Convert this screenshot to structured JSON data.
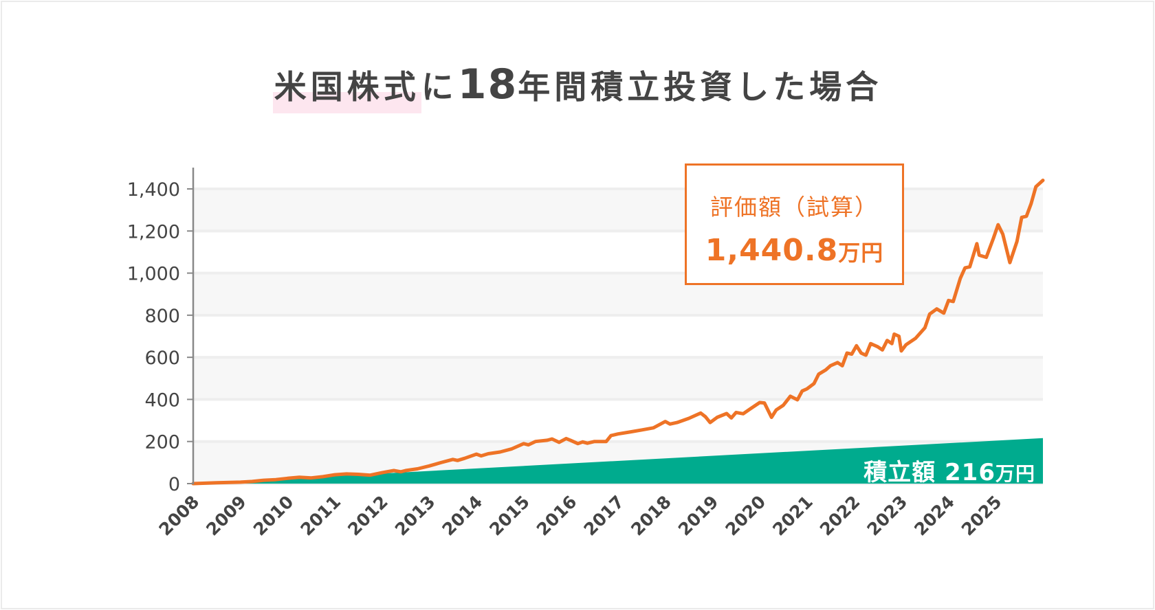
{
  "title": {
    "highlight": "米国株式",
    "part1": "に",
    "number": "18",
    "part2": "年間積立投資した場合"
  },
  "callout": {
    "label": "評価額（試算）",
    "value": "1,440.8",
    "unit": "万円"
  },
  "accumulated_label": {
    "label": "積立額",
    "value": "216",
    "unit": "万円"
  },
  "colors": {
    "valuation": "#ee7326",
    "accumulated": "#00ab8e",
    "highlight": "#fde6ef",
    "text": "#444444"
  },
  "chart_data": {
    "type": "line",
    "xlim": [
      2008,
      2026
    ],
    "ylim": [
      0,
      1400
    ],
    "x_ticks": [
      "2008",
      "2009",
      "2010",
      "2011",
      "2012",
      "2013",
      "2014",
      "2015",
      "2016",
      "2017",
      "2018",
      "2019",
      "2020",
      "2021",
      "2022",
      "2023",
      "2024",
      "2025"
    ],
    "y_ticks": [
      "0",
      "200",
      "400",
      "600",
      "800",
      "1,000",
      "1,200",
      "1,400"
    ],
    "y_tick_values": [
      0,
      200,
      400,
      600,
      800,
      1000,
      1200,
      1400
    ],
    "grid": true,
    "series": [
      {
        "name": "評価額（試算）",
        "type": "line",
        "color": "#ee7326",
        "points": [
          [
            2008,
            0
          ],
          [
            2008.5,
            4
          ],
          [
            2009,
            7
          ],
          [
            2009.25,
            10
          ],
          [
            2009.5,
            16
          ],
          [
            2009.75,
            19
          ],
          [
            2010,
            25
          ],
          [
            2010.25,
            30
          ],
          [
            2010.5,
            27
          ],
          [
            2010.75,
            33
          ],
          [
            2011,
            42
          ],
          [
            2011.25,
            46
          ],
          [
            2011.5,
            44
          ],
          [
            2011.75,
            40
          ],
          [
            2012,
            52
          ],
          [
            2012.25,
            62
          ],
          [
            2012.4,
            56
          ],
          [
            2012.5,
            62
          ],
          [
            2012.75,
            70
          ],
          [
            2013,
            84
          ],
          [
            2013.25,
            100
          ],
          [
            2013.5,
            115
          ],
          [
            2013.6,
            110
          ],
          [
            2013.75,
            120
          ],
          [
            2014,
            140
          ],
          [
            2014.1,
            132
          ],
          [
            2014.25,
            142
          ],
          [
            2014.5,
            150
          ],
          [
            2014.75,
            165
          ],
          [
            2015,
            190
          ],
          [
            2015.1,
            184
          ],
          [
            2015.25,
            200
          ],
          [
            2015.5,
            206
          ],
          [
            2015.6,
            212
          ],
          [
            2015.75,
            196
          ],
          [
            2015.9,
            214
          ],
          [
            2016,
            205
          ],
          [
            2016.15,
            190
          ],
          [
            2016.25,
            198
          ],
          [
            2016.35,
            192
          ],
          [
            2016.5,
            200
          ],
          [
            2016.75,
            200
          ],
          [
            2016.85,
            228
          ],
          [
            2017,
            236
          ],
          [
            2017.25,
            245
          ],
          [
            2017.5,
            255
          ],
          [
            2017.75,
            265
          ],
          [
            2018,
            295
          ],
          [
            2018.1,
            283
          ],
          [
            2018.25,
            290
          ],
          [
            2018.5,
            310
          ],
          [
            2018.75,
            335
          ],
          [
            2018.85,
            318
          ],
          [
            2018.95,
            290
          ],
          [
            2019.1,
            315
          ],
          [
            2019.3,
            333
          ],
          [
            2019.4,
            312
          ],
          [
            2019.5,
            338
          ],
          [
            2019.65,
            332
          ],
          [
            2019.8,
            355
          ],
          [
            2020,
            385
          ],
          [
            2020.1,
            383
          ],
          [
            2020.25,
            315
          ],
          [
            2020.35,
            350
          ],
          [
            2020.5,
            372
          ],
          [
            2020.65,
            415
          ],
          [
            2020.8,
            398
          ],
          [
            2020.9,
            440
          ],
          [
            2021,
            450
          ],
          [
            2021.15,
            475
          ],
          [
            2021.25,
            520
          ],
          [
            2021.4,
            540
          ],
          [
            2021.5,
            560
          ],
          [
            2021.65,
            575
          ],
          [
            2021.75,
            560
          ],
          [
            2021.85,
            620
          ],
          [
            2021.95,
            615
          ],
          [
            2022.05,
            655
          ],
          [
            2022.15,
            620
          ],
          [
            2022.25,
            610
          ],
          [
            2022.35,
            665
          ],
          [
            2022.5,
            650
          ],
          [
            2022.6,
            635
          ],
          [
            2022.7,
            680
          ],
          [
            2022.8,
            665
          ],
          [
            2022.85,
            710
          ],
          [
            2022.95,
            700
          ],
          [
            2023,
            630
          ],
          [
            2023.1,
            660
          ],
          [
            2023.3,
            690
          ],
          [
            2023.5,
            740
          ],
          [
            2023.6,
            805
          ],
          [
            2023.75,
            830
          ],
          [
            2023.9,
            810
          ],
          [
            2024,
            870
          ],
          [
            2024.1,
            865
          ],
          [
            2024.25,
            975
          ],
          [
            2024.35,
            1025
          ],
          [
            2024.45,
            1030
          ],
          [
            2024.6,
            1140
          ],
          [
            2024.65,
            1085
          ],
          [
            2024.8,
            1075
          ],
          [
            2024.95,
            1165
          ],
          [
            2025.05,
            1230
          ],
          [
            2025.15,
            1185
          ],
          [
            2025.3,
            1050
          ],
          [
            2025.45,
            1150
          ],
          [
            2025.55,
            1265
          ],
          [
            2025.65,
            1270
          ],
          [
            2025.75,
            1330
          ],
          [
            2025.85,
            1410
          ],
          [
            2026,
            1440.8
          ]
        ]
      },
      {
        "name": "積立額",
        "type": "area",
        "color": "#00ab8e",
        "points": [
          [
            2008,
            0
          ],
          [
            2026,
            216
          ]
        ]
      }
    ]
  }
}
